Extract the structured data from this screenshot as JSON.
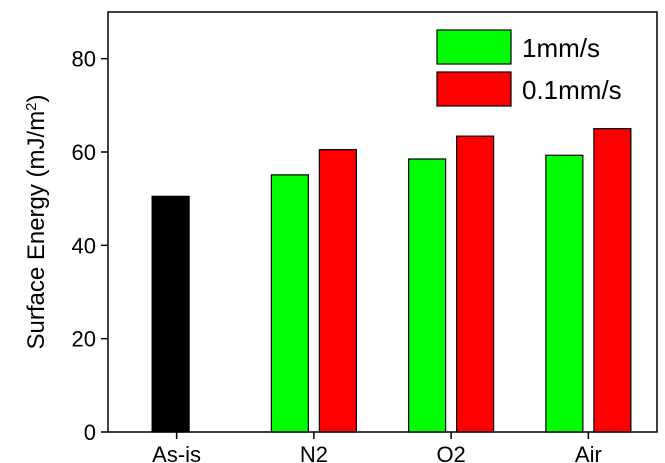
{
  "chart_data": {
    "type": "bar",
    "categories": [
      "As-is",
      "N2",
      "O2",
      "Air"
    ],
    "series": [
      {
        "name": "",
        "color": "#000000",
        "values": [
          50.5,
          null,
          null,
          null
        ]
      },
      {
        "name": "1mm/s",
        "color": "#00ff00",
        "values": [
          null,
          55.1,
          58.5,
          59.3
        ]
      },
      {
        "name": "0.1mm/s",
        "color": "#ff0000",
        "values": [
          null,
          60.5,
          63.4,
          65.0
        ]
      }
    ],
    "title": "",
    "xlabel": "",
    "ylabel": "Surface Energy (mJ/m",
    "ylabel_superscript": "2",
    "ylabel_suffix": ")",
    "ylim": [
      0,
      90
    ],
    "yticks": [
      0,
      20,
      40,
      60,
      80
    ],
    "grid": false,
    "legend_position": "top-right"
  }
}
